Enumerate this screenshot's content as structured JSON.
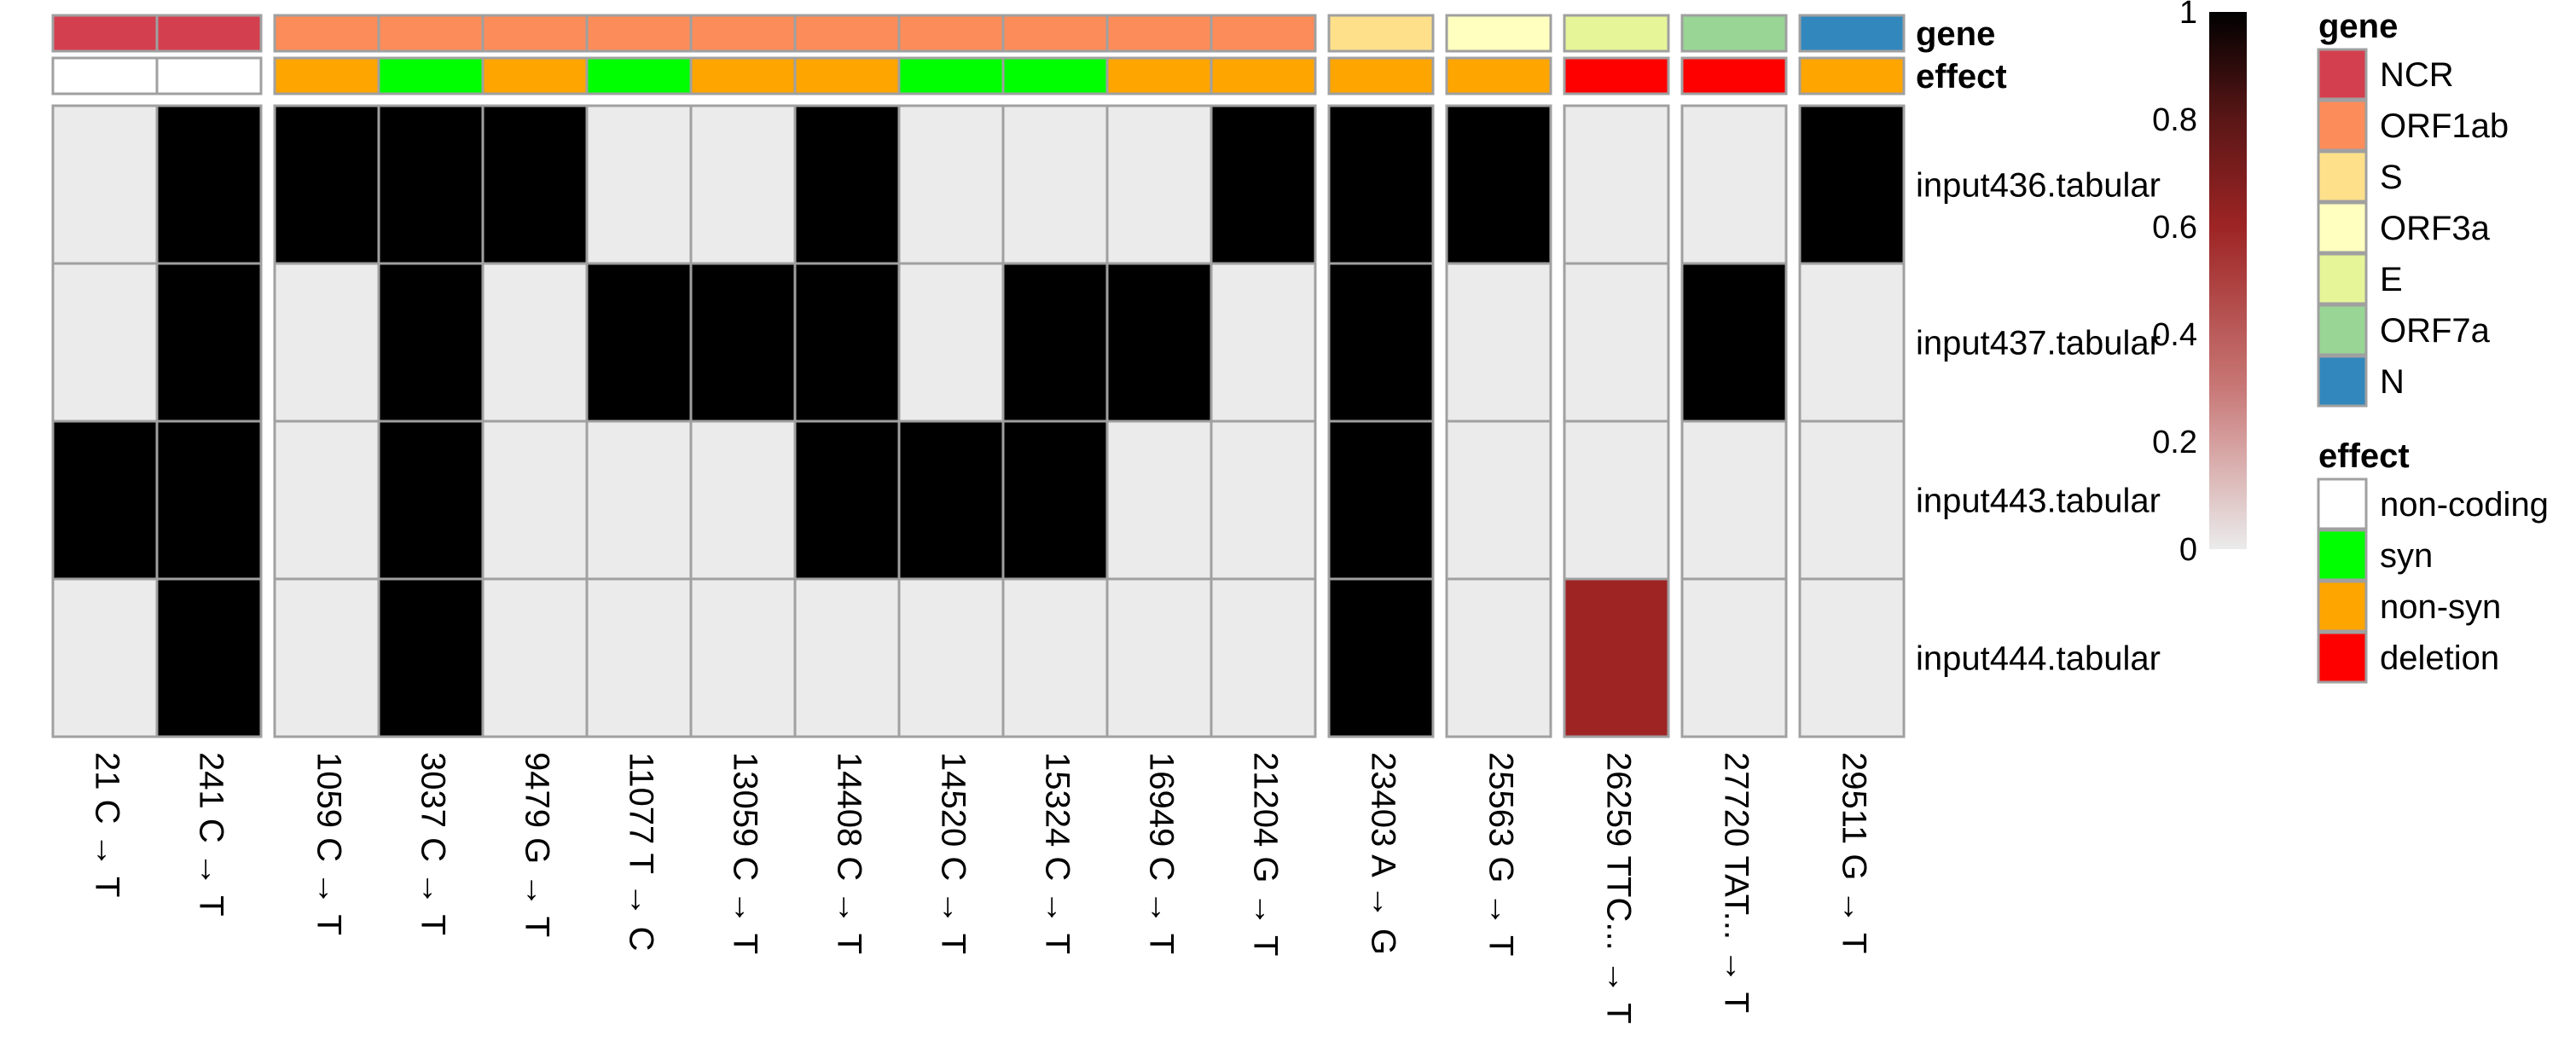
{
  "chart_data": {
    "type": "heatmap",
    "value_range": [
      0,
      1
    ],
    "colorbar_ticks": [
      "1",
      "0.8",
      "0.6",
      "0.4",
      "0.2",
      "0"
    ],
    "annotation_row_labels": [
      "gene",
      "effect"
    ],
    "legends": {
      "gene": {
        "title": "gene",
        "items": [
          {
            "label": "NCR",
            "color": "#d43f4f"
          },
          {
            "label": "ORF1ab",
            "color": "#fc8c59"
          },
          {
            "label": "S",
            "color": "#fee08b"
          },
          {
            "label": "ORF3a",
            "color": "#ffffbf"
          },
          {
            "label": "E",
            "color": "#e6f598"
          },
          {
            "label": "ORF7a",
            "color": "#99d594"
          },
          {
            "label": "N",
            "color": "#3288bd"
          }
        ]
      },
      "effect": {
        "title": "effect",
        "items": [
          {
            "label": "non-coding",
            "color": "#ffffff"
          },
          {
            "label": "syn",
            "color": "#00ff00"
          },
          {
            "label": "non-syn",
            "color": "#ffa500"
          },
          {
            "label": "deletion",
            "color": "#ff0000"
          }
        ]
      }
    },
    "column_groups": [
      {
        "gene": "NCR",
        "columns": [
          {
            "label": "21 C → T",
            "effect": "non-coding",
            "values": [
              0,
              0,
              1,
              0
            ]
          },
          {
            "label": "241 C → T",
            "effect": "non-coding",
            "values": [
              1,
              1,
              1,
              1
            ]
          }
        ]
      },
      {
        "gene": "ORF1ab",
        "columns": [
          {
            "label": "1059 C → T",
            "effect": "non-syn",
            "values": [
              1,
              0,
              0,
              0
            ]
          },
          {
            "label": "3037 C → T",
            "effect": "syn",
            "values": [
              1,
              1,
              1,
              1
            ]
          },
          {
            "label": "9479 G → T",
            "effect": "non-syn",
            "values": [
              1,
              0,
              0,
              0
            ]
          },
          {
            "label": "11077 T → C",
            "effect": "syn",
            "values": [
              0,
              1,
              0,
              0
            ]
          },
          {
            "label": "13059 C → T",
            "effect": "non-syn",
            "values": [
              0,
              1,
              0,
              0
            ]
          },
          {
            "label": "14408 C → T",
            "effect": "non-syn",
            "values": [
              1,
              1,
              1,
              0
            ]
          },
          {
            "label": "14520 C → T",
            "effect": "syn",
            "values": [
              0,
              0,
              1,
              0
            ]
          },
          {
            "label": "15324 C → T",
            "effect": "syn",
            "values": [
              0,
              1,
              1,
              0
            ]
          },
          {
            "label": "16949 C → T",
            "effect": "non-syn",
            "values": [
              0,
              1,
              0,
              0
            ]
          },
          {
            "label": "21204 G → T",
            "effect": "non-syn",
            "values": [
              1,
              0,
              0,
              0
            ]
          }
        ]
      },
      {
        "gene": "S",
        "columns": [
          {
            "label": "23403 A → G",
            "effect": "non-syn",
            "values": [
              1,
              1,
              1,
              1
            ]
          }
        ]
      },
      {
        "gene": "ORF3a",
        "columns": [
          {
            "label": "25563 G → T",
            "effect": "non-syn",
            "values": [
              1,
              0,
              0,
              0
            ]
          }
        ]
      },
      {
        "gene": "E",
        "columns": [
          {
            "label": "26259 TTC... → T",
            "effect": "deletion",
            "values": [
              0,
              0,
              0,
              0.6
            ]
          }
        ]
      },
      {
        "gene": "ORF7a",
        "columns": [
          {
            "label": "27720 TAT... → T",
            "effect": "deletion",
            "values": [
              0,
              1,
              0,
              0
            ]
          }
        ]
      },
      {
        "gene": "N",
        "columns": [
          {
            "label": "29511 G → T",
            "effect": "non-syn",
            "values": [
              1,
              0,
              0,
              0
            ]
          }
        ]
      }
    ],
    "rows": [
      "input436.tabular",
      "input437.tabular",
      "input443.tabular",
      "input444.tabular"
    ]
  }
}
